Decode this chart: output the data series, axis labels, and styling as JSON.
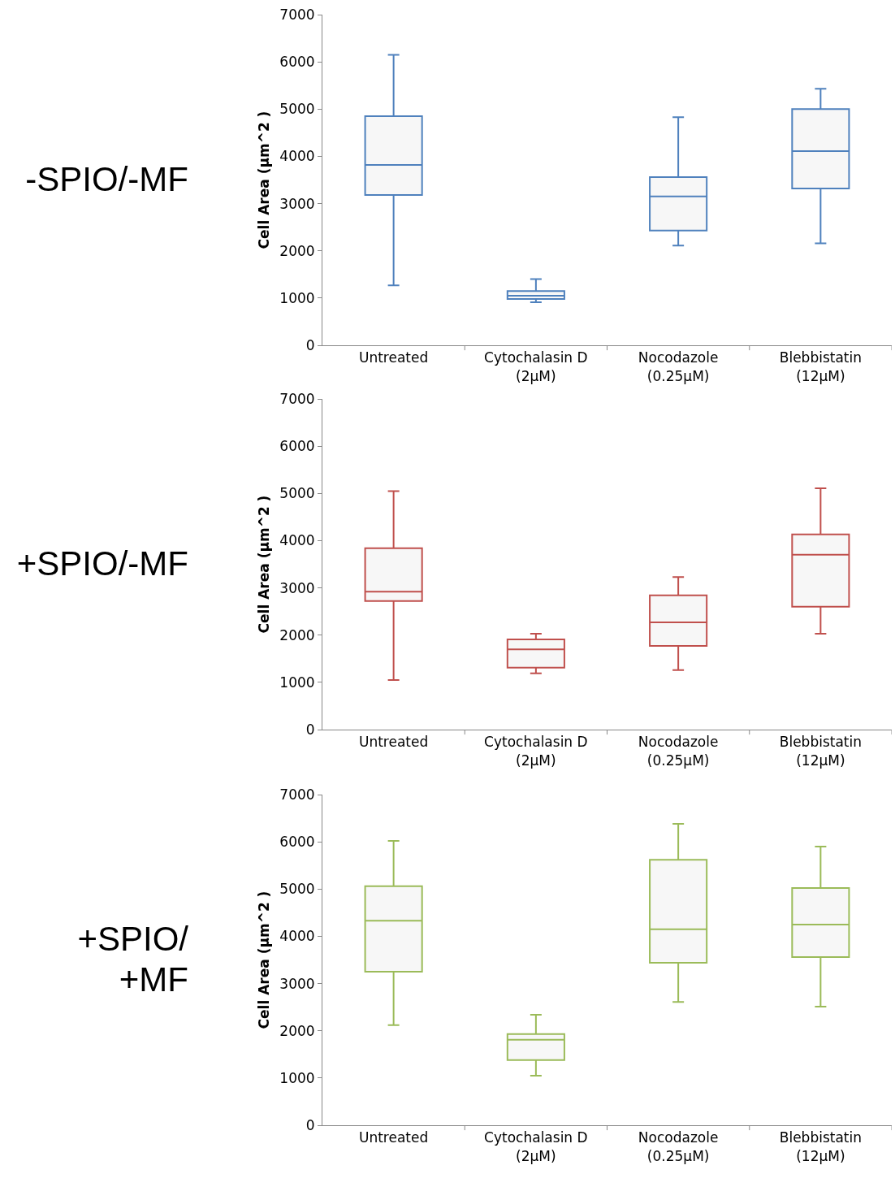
{
  "chart_data": [
    {
      "type": "box",
      "title": "-SPIO/-MF",
      "ylabel": "Cell Area (μm^2 )",
      "categories": [
        "Untreated",
        "Cytochalasin D (2μM)",
        "Nocodazole (0.25μM)",
        "Blebbistatin (12μM)"
      ],
      "ylim": [
        0,
        7000
      ],
      "yticks": [
        0,
        1000,
        2000,
        3000,
        4000,
        5000,
        6000,
        7000
      ],
      "grid": false,
      "series": [
        {
          "color": "#4f81bd",
          "boxes": [
            {
              "low": 1270,
              "q1": 3180,
              "median": 3820,
              "q3": 4850,
              "high": 6150
            },
            {
              "low": 910,
              "q1": 980,
              "median": 1050,
              "q3": 1150,
              "high": 1400
            },
            {
              "low": 2110,
              "q1": 2430,
              "median": 3150,
              "q3": 3560,
              "high": 4830
            },
            {
              "low": 2160,
              "q1": 3320,
              "median": 4110,
              "q3": 5000,
              "high": 5430
            }
          ]
        }
      ]
    },
    {
      "type": "box",
      "title": "+SPIO/-MF",
      "ylabel": "Cell Area (μm^2 )",
      "categories": [
        "Untreated",
        "Cytochalasin D (2μM)",
        "Nocodazole (0.25μM)",
        "Blebbistatin (12μM)"
      ],
      "ylim": [
        0,
        7000
      ],
      "yticks": [
        0,
        1000,
        2000,
        3000,
        4000,
        5000,
        6000,
        7000
      ],
      "grid": false,
      "series": [
        {
          "color": "#c0504d",
          "boxes": [
            {
              "low": 1050,
              "q1": 2720,
              "median": 2920,
              "q3": 3840,
              "high": 5050
            },
            {
              "low": 1190,
              "q1": 1310,
              "median": 1700,
              "q3": 1910,
              "high": 2030
            },
            {
              "low": 1260,
              "q1": 1770,
              "median": 2270,
              "q3": 2840,
              "high": 3230
            },
            {
              "low": 2030,
              "q1": 2600,
              "median": 3700,
              "q3": 4130,
              "high": 5110
            }
          ]
        }
      ]
    },
    {
      "type": "box",
      "title": "+SPIO/ +MF",
      "ylabel": "Cell Area (μm^2 )",
      "categories": [
        "Untreated",
        "Cytochalasin D (2μM)",
        "Nocodazole (0.25μM)",
        "Blebbistatin (12μM)"
      ],
      "ylim": [
        0,
        7000
      ],
      "yticks": [
        0,
        1000,
        2000,
        3000,
        4000,
        5000,
        6000,
        7000
      ],
      "grid": false,
      "series": [
        {
          "color": "#9bbb59",
          "boxes": [
            {
              "low": 2120,
              "q1": 3250,
              "median": 4330,
              "q3": 5060,
              "high": 6020
            },
            {
              "low": 1050,
              "q1": 1380,
              "median": 1810,
              "q3": 1930,
              "high": 2340
            },
            {
              "low": 2610,
              "q1": 3440,
              "median": 4150,
              "q3": 5620,
              "high": 6380
            },
            {
              "low": 2510,
              "q1": 3560,
              "median": 4250,
              "q3": 5020,
              "high": 5900
            }
          ]
        }
      ]
    }
  ]
}
